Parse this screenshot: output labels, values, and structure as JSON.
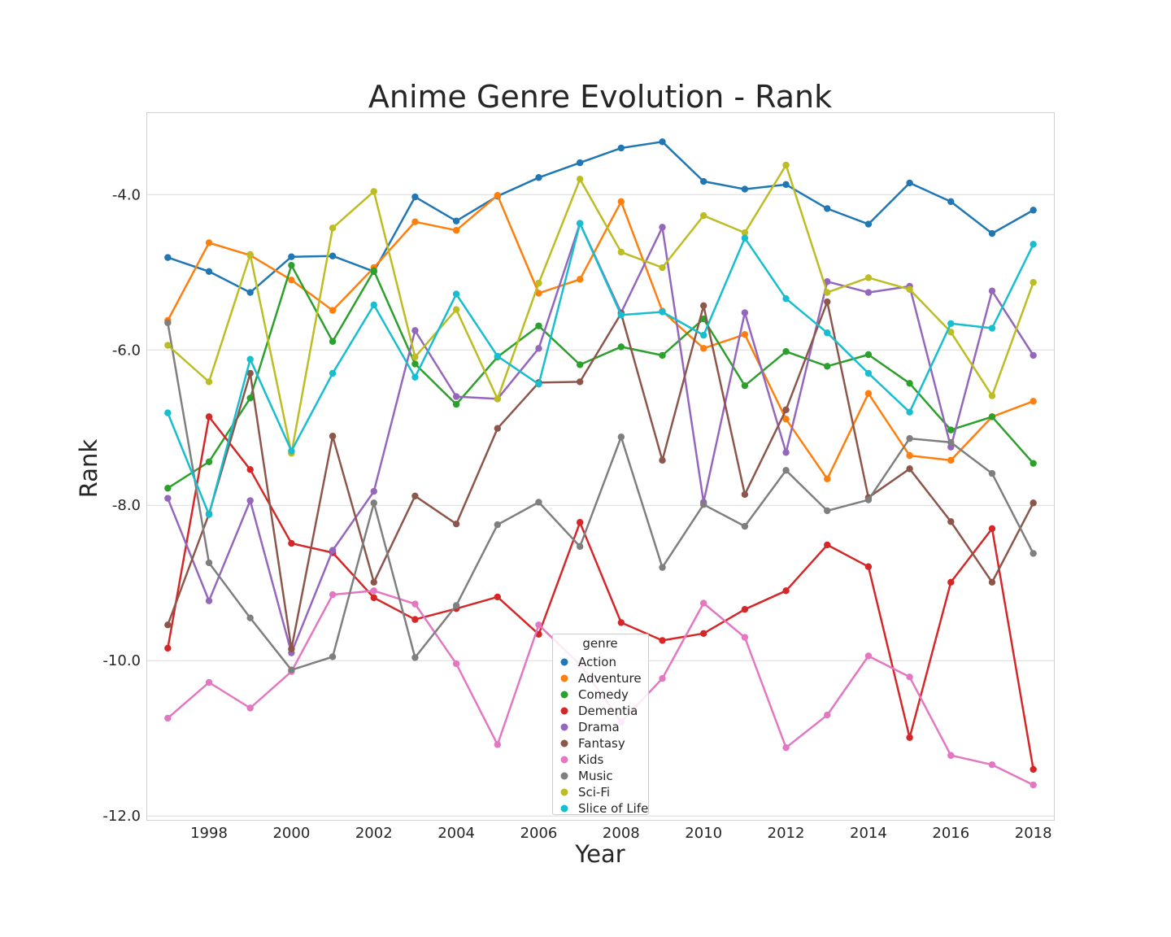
{
  "chart_data": {
    "type": "line",
    "title": "Anime Genre Evolution - Rank",
    "xlabel": "Year",
    "ylabel": "Rank",
    "xlim": [
      1996.5,
      2018.5
    ],
    "ylim": [
      -12.05,
      -2.95
    ],
    "xticks": [
      1998,
      2000,
      2002,
      2004,
      2006,
      2008,
      2010,
      2012,
      2014,
      2016,
      2018
    ],
    "xtick_labels": [
      "1998",
      "2000",
      "2002",
      "2004",
      "2006",
      "2008",
      "2010",
      "2012",
      "2014",
      "2016",
      "2018"
    ],
    "yticks": [
      -4.0,
      -6.0,
      -8.0,
      -10.0,
      -12.0
    ],
    "ytick_labels": [
      "-4.0",
      "-6.0",
      "-8.0",
      "-10.0",
      "-12.0"
    ],
    "grid": true,
    "legend": {
      "title": "genre",
      "position": "bottom-center"
    },
    "x": [
      1997,
      1998,
      1999,
      2000,
      2001,
      2002,
      2003,
      2004,
      2005,
      2006,
      2007,
      2008,
      2009,
      2010,
      2011,
      2012,
      2013,
      2014,
      2015,
      2016,
      2017,
      2018
    ],
    "series": [
      {
        "name": "Action",
        "color": "#1f77b4",
        "values": [
          -4.81,
          -4.99,
          -5.26,
          -4.8,
          -4.79,
          -4.99,
          -4.03,
          -4.34,
          -4.02,
          -3.78,
          -3.59,
          -3.4,
          -3.32,
          -3.83,
          -3.93,
          -3.87,
          -4.18,
          -4.38,
          -3.85,
          -4.09,
          -4.5,
          -4.2
        ]
      },
      {
        "name": "Adventure",
        "color": "#ff7f0e",
        "values": [
          -5.62,
          -4.62,
          -4.78,
          -5.1,
          -5.49,
          -4.94,
          -4.35,
          -4.46,
          -4.01,
          -5.27,
          -5.09,
          -4.09,
          -5.5,
          -5.98,
          -5.8,
          -6.89,
          -7.66,
          -6.56,
          -7.36,
          -7.42,
          -6.86,
          -6.66
        ]
      },
      {
        "name": "Comedy",
        "color": "#2ca02c",
        "values": [
          -7.78,
          -7.44,
          -6.62,
          -4.91,
          -5.89,
          -4.98,
          -6.18,
          -6.7,
          -6.09,
          -5.69,
          -6.19,
          -5.96,
          -6.07,
          -5.6,
          -6.46,
          -6.02,
          -6.21,
          -6.06,
          -6.43,
          -7.03,
          -6.86,
          -7.46
        ]
      },
      {
        "name": "Dementia",
        "color": "#d62728",
        "values": [
          -9.84,
          -6.86,
          -7.54,
          -8.49,
          -8.61,
          -9.19,
          -9.47,
          -9.33,
          -9.18,
          -9.66,
          -8.22,
          -9.51,
          -9.74,
          -9.65,
          -9.34,
          -9.1,
          -8.51,
          -8.79,
          -10.99,
          -8.99,
          -8.3,
          -11.4
        ]
      },
      {
        "name": "Drama",
        "color": "#9467bd",
        "values": [
          -7.91,
          -9.23,
          -7.94,
          -9.9,
          -8.58,
          -7.82,
          -5.75,
          -6.6,
          -6.63,
          -5.98,
          -4.37,
          -5.52,
          -4.42,
          -7.96,
          -5.52,
          -7.32,
          -5.12,
          -5.26,
          -5.18,
          -7.25,
          -5.24,
          -6.07
        ]
      },
      {
        "name": "Fantasy",
        "color": "#8c564b",
        "values": [
          -9.54,
          -8.11,
          -6.3,
          -9.85,
          -7.11,
          -8.99,
          -7.88,
          -8.24,
          -7.01,
          -6.42,
          -6.41,
          -5.53,
          -7.42,
          -5.43,
          -7.86,
          -6.77,
          -5.38,
          -7.9,
          -7.53,
          -8.21,
          -8.99,
          -7.97
        ]
      },
      {
        "name": "Kids",
        "color": "#e377c2",
        "values": [
          -10.74,
          -10.28,
          -10.61,
          -10.14,
          -9.15,
          -9.1,
          -9.27,
          -10.04,
          -11.08,
          -9.54,
          -10.05,
          -10.79,
          -10.23,
          -9.26,
          -9.7,
          -11.12,
          -10.7,
          -9.94,
          -10.21,
          -11.22,
          -11.34,
          -11.6
        ]
      },
      {
        "name": "Music",
        "color": "#7f7f7f",
        "values": [
          -5.65,
          -8.74,
          -9.45,
          -10.12,
          -9.95,
          -7.97,
          -9.96,
          -9.29,
          -8.25,
          -7.96,
          -8.53,
          -7.12,
          -8.8,
          -7.99,
          -8.27,
          -7.55,
          -8.07,
          -7.93,
          -7.14,
          -7.19,
          -7.59,
          -8.62
        ]
      },
      {
        "name": "Sci-Fi",
        "color": "#bcbd22",
        "values": [
          -5.94,
          -6.41,
          -4.77,
          -7.33,
          -4.43,
          -3.96,
          -6.09,
          -5.48,
          -6.63,
          -5.14,
          -3.8,
          -4.74,
          -4.94,
          -4.27,
          -4.49,
          -3.62,
          -5.26,
          -5.07,
          -5.22,
          -5.77,
          -6.59,
          -5.13
        ]
      },
      {
        "name": "Slice of Life",
        "color": "#17becf",
        "values": [
          -6.81,
          -8.12,
          -6.12,
          -7.3,
          -6.3,
          -5.42,
          -6.35,
          -5.28,
          -6.08,
          -6.44,
          -4.37,
          -5.55,
          -5.51,
          -5.81,
          -4.56,
          -5.34,
          -5.78,
          -6.3,
          -6.8,
          -5.66,
          -5.72,
          -4.64
        ]
      }
    ]
  }
}
